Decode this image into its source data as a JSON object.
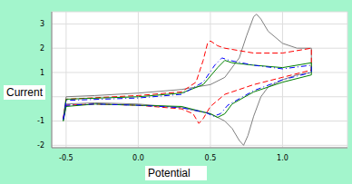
{
  "chart_data": {
    "type": "line",
    "x_label": "Potential",
    "y_label": "Current",
    "xlim": [
      -0.6,
      1.45
    ],
    "ylim": [
      -2.1,
      3.5
    ],
    "xticks": [
      -0.5,
      {
        "value": 0,
        "label": "0.0"
      },
      0.5,
      {
        "value": 1,
        "label": "1.0"
      }
    ],
    "yticks": [
      -2,
      -1,
      0,
      1,
      2,
      3
    ],
    "grid": true,
    "series": [
      {
        "color": "#808080",
        "line_style": "solid",
        "x": [
          -0.52,
          -0.5,
          -0.3,
          0,
          0.3,
          0.5,
          0.6,
          0.7,
          0.75,
          0.8,
          0.82,
          0.85,
          0.9,
          1.0,
          1.1,
          1.2,
          1.2,
          1.1,
          1.0,
          0.9,
          0.85,
          0.8,
          0.76,
          0.73,
          0.7,
          0.65,
          0.6,
          0.5,
          0.3,
          0,
          -0.3,
          -0.5,
          -0.52
        ],
        "values": [
          -0.9,
          0.0,
          0.05,
          0.15,
          0.3,
          0.5,
          0.8,
          1.6,
          2.5,
          3.3,
          3.4,
          3.2,
          2.7,
          2.2,
          2.0,
          2.0,
          1.0,
          0.9,
          0.7,
          0.4,
          0.0,
          -0.8,
          -1.6,
          -2.0,
          -1.8,
          -1.3,
          -1.0,
          -0.7,
          -0.45,
          -0.3,
          -0.25,
          -0.3,
          -0.9
        ]
      },
      {
        "color": "#ff0000",
        "line_style": "dashed",
        "x": [
          -0.52,
          -0.5,
          0,
          0.3,
          0.4,
          0.45,
          0.48,
          0.5,
          0.55,
          0.6,
          0.8,
          1.0,
          1.2,
          1.2,
          1.0,
          0.8,
          0.6,
          0.5,
          0.45,
          0.42,
          0.38,
          0.3,
          0,
          -0.3,
          -0.5,
          -0.52
        ],
        "values": [
          -0.9,
          -0.1,
          0.05,
          0.2,
          0.6,
          1.5,
          2.2,
          2.3,
          2.1,
          2.0,
          1.8,
          1.8,
          2.0,
          1.1,
          0.8,
          0.5,
          0.1,
          -0.4,
          -0.9,
          -1.1,
          -0.7,
          -0.5,
          -0.35,
          -0.3,
          -0.35,
          -0.9
        ]
      },
      {
        "color": "#008000",
        "line_style": "solid",
        "x": [
          -0.52,
          -0.5,
          0,
          0.3,
          0.45,
          0.55,
          0.6,
          0.65,
          0.8,
          1.0,
          1.2,
          1.2,
          1.0,
          0.8,
          0.65,
          0.6,
          0.55,
          0.5,
          0.3,
          0,
          -0.3,
          -0.5,
          -0.52
        ],
        "values": [
          -1.0,
          -0.1,
          0.0,
          0.15,
          0.5,
          1.2,
          1.5,
          1.4,
          1.3,
          1.2,
          1.4,
          0.9,
          0.6,
          0.2,
          -0.3,
          -0.7,
          -0.85,
          -0.7,
          -0.4,
          -0.35,
          -0.3,
          -0.4,
          -1.0
        ]
      },
      {
        "color": "#0000ff",
        "line_style": "dashdot",
        "x": [
          -0.52,
          -0.5,
          0,
          0.3,
          0.45,
          0.53,
          0.58,
          0.63,
          0.8,
          1.0,
          1.2,
          1.2,
          1.0,
          0.8,
          0.62,
          0.57,
          0.52,
          0.47,
          0.3,
          0,
          -0.3,
          -0.5,
          -0.52
        ],
        "values": [
          -0.95,
          -0.15,
          -0.05,
          0.1,
          0.6,
          1.3,
          1.6,
          1.5,
          1.3,
          1.15,
          1.3,
          1.0,
          0.7,
          0.25,
          -0.35,
          -0.7,
          -0.8,
          -0.65,
          -0.45,
          -0.35,
          -0.3,
          -0.35,
          -0.95
        ]
      }
    ]
  }
}
